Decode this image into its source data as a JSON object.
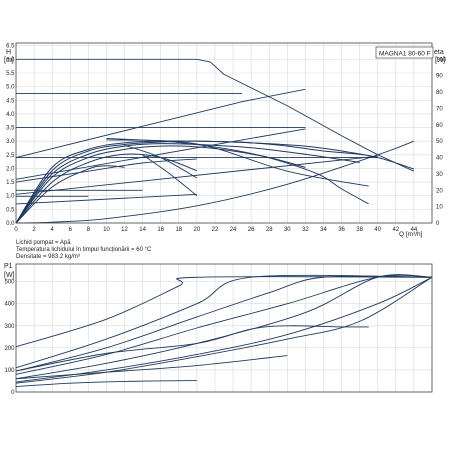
{
  "model_label": "MAGNA1 80-60 F",
  "chart_data": [
    {
      "type": "line",
      "id": "qh",
      "y_unit_letter": "H",
      "y_unit": "[m]",
      "y2_unit_letter": "eta",
      "y2_unit": "[%]",
      "x_unit": "Q [m³/h]",
      "xlim": [
        0,
        46
      ],
      "ylim": [
        0,
        6.6
      ],
      "y2lim": [
        0,
        110
      ],
      "x_ticks": [
        0,
        2,
        4,
        6,
        8,
        10,
        12,
        14,
        16,
        18,
        20,
        22,
        24,
        26,
        28,
        30,
        32,
        34,
        36,
        38,
        40,
        42,
        44
      ],
      "y_ticks": [
        "0.0",
        "0.5",
        "1.0",
        "1.5",
        "2.0",
        "2.5",
        "3.0",
        "3.5",
        "4.0",
        "4.5",
        "5.0",
        "5.5",
        "6.0",
        "6.5"
      ],
      "y2_ticks": [
        0,
        10,
        20,
        30,
        40,
        50,
        60,
        70,
        80,
        90,
        100
      ],
      "grid": true,
      "series": [
        {
          "kind": "head",
          "x": [
            0,
            20,
            21.5,
            23,
            30,
            36,
            40,
            44
          ],
          "y": [
            6.0,
            6.0,
            5.9,
            5.45,
            4.3,
            3.2,
            2.5,
            1.9
          ]
        },
        {
          "kind": "head",
          "x": [
            0,
            25
          ],
          "y": [
            4.75,
            4.75
          ]
        },
        {
          "kind": "head",
          "x": [
            0,
            32
          ],
          "y": [
            3.5,
            3.5
          ]
        },
        {
          "kind": "head",
          "x": [
            0,
            40
          ],
          "y": [
            2.4,
            2.4
          ]
        },
        {
          "kind": "head",
          "x": [
            0,
            14
          ],
          "y": [
            1.2,
            1.2
          ]
        },
        {
          "kind": "head",
          "x": [
            0,
            8
          ],
          "y": [
            0.98,
            0.98
          ]
        },
        {
          "kind": "prop",
          "x": [
            0,
            25,
            32
          ],
          "y": [
            2.4,
            4.45,
            4.9
          ]
        },
        {
          "kind": "prop",
          "x": [
            0,
            32
          ],
          "y": [
            1.6,
            3.45
          ]
        },
        {
          "kind": "prop",
          "x": [
            0,
            40
          ],
          "y": [
            1.05,
            2.45
          ]
        },
        {
          "kind": "prop",
          "x": [
            0,
            20
          ],
          "y": [
            0.7,
            1.05
          ]
        },
        {
          "kind": "syscurve",
          "x": [
            0,
            4,
            10,
            20,
            30,
            40,
            44
          ],
          "y": [
            0.0,
            0.03,
            0.16,
            0.63,
            1.42,
            2.5,
            3.0
          ]
        },
        {
          "kind": "eff",
          "x": [
            0,
            4,
            8,
            12,
            16,
            20,
            26,
            32,
            36,
            40,
            44
          ],
          "y": [
            0,
            32,
            44,
            48,
            49.5,
            50,
            49,
            47,
            44,
            40,
            33
          ]
        },
        {
          "kind": "eff",
          "x": [
            0,
            4,
            8,
            12,
            16,
            20,
            26,
            30,
            34,
            38,
            40
          ],
          "y": [
            0,
            34,
            45,
            49,
            50,
            50,
            49,
            47,
            44,
            42,
            40
          ]
        },
        {
          "kind": "eff",
          "x": [
            0,
            4,
            8,
            12,
            16,
            20,
            26,
            32,
            38
          ],
          "y": [
            0,
            30,
            42,
            47,
            48.5,
            48,
            46,
            42,
            37
          ]
        },
        {
          "kind": "eff",
          "x": [
            0,
            4,
            8,
            12,
            16,
            20,
            24,
            28,
            32
          ],
          "y": [
            0,
            28,
            40,
            45,
            47,
            46.5,
            44,
            40,
            34
          ]
        },
        {
          "kind": "eff",
          "x": [
            0,
            4,
            8,
            12,
            16,
            20
          ],
          "y": [
            0,
            25,
            37,
            42,
            40,
            32
          ]
        },
        {
          "kind": "eff",
          "x": [
            0,
            4,
            8,
            10,
            12
          ],
          "y": [
            0,
            22,
            33,
            35,
            34
          ]
        },
        {
          "kind": "ext",
          "x": [
            12,
            16,
            20
          ],
          "y": [
            2.85,
            2.4,
            1.65
          ]
        },
        {
          "kind": "ext",
          "x": [
            14,
            17,
            20
          ],
          "y": [
            2.5,
            1.8,
            1.0
          ]
        },
        {
          "kind": "ext",
          "x": [
            0,
            8,
            14,
            20
          ],
          "y": [
            1.5,
            1.9,
            2.2,
            2.35
          ]
        },
        {
          "kind": "ext",
          "x": [
            10,
            20,
            30,
            39
          ],
          "y": [
            3.05,
            2.9,
            1.9,
            1.35
          ]
        },
        {
          "kind": "ext",
          "x": [
            10,
            18,
            26,
            33,
            36,
            39
          ],
          "y": [
            3.1,
            2.95,
            2.55,
            1.85,
            1.25,
            0.7
          ]
        }
      ]
    },
    {
      "type": "line",
      "id": "qp",
      "y_unit_letter": "P1",
      "y_unit": "[W]",
      "xlim": [
        0,
        46
      ],
      "ylim": [
        0,
        580
      ],
      "y_ticks": [
        0,
        100,
        200,
        300,
        400,
        500
      ],
      "grid": true,
      "series": [
        {
          "x": [
            0,
            10,
            18,
            20,
            46
          ],
          "y": [
            205,
            330,
            480,
            520,
            520
          ]
        },
        {
          "x": [
            0,
            10,
            20,
            26,
            46
          ],
          "y": [
            110,
            240,
            400,
            520,
            520
          ]
        },
        {
          "x": [
            0,
            10,
            20,
            30,
            40,
            46
          ],
          "y": [
            80,
            170,
            290,
            400,
            520,
            520
          ]
        },
        {
          "x": [
            0,
            10,
            20,
            32,
            40,
            46
          ],
          "y": [
            60,
            130,
            220,
            360,
            520,
            520
          ]
        },
        {
          "x": [
            0,
            10,
            20,
            28,
            34,
            46
          ],
          "y": [
            95,
            200,
            340,
            450,
            520,
            520
          ]
        },
        {
          "x": [
            0,
            10,
            20,
            30,
            40,
            46
          ],
          "y": [
            45,
            100,
            170,
            260,
            400,
            520
          ]
        },
        {
          "x": [
            0,
            10,
            20,
            30,
            38,
            46
          ],
          "y": [
            40,
            90,
            160,
            240,
            320,
            520
          ]
        },
        {
          "x": [
            0,
            10,
            20,
            26,
            30,
            36,
            39
          ],
          "y": [
            95,
            175,
            220,
            285,
            300,
            295,
            295
          ]
        },
        {
          "x": [
            0,
            10,
            20,
            30
          ],
          "y": [
            60,
            90,
            120,
            165
          ]
        },
        {
          "x": [
            0,
            6,
            12,
            20
          ],
          "y": [
            25,
            40,
            48,
            52
          ]
        }
      ]
    }
  ],
  "notes": [
    "Lichid pompat = Apă",
    "Temperatura lichidului în timpul funcționării = 60 °C",
    "Densitate = 983.2 kg/m³"
  ]
}
